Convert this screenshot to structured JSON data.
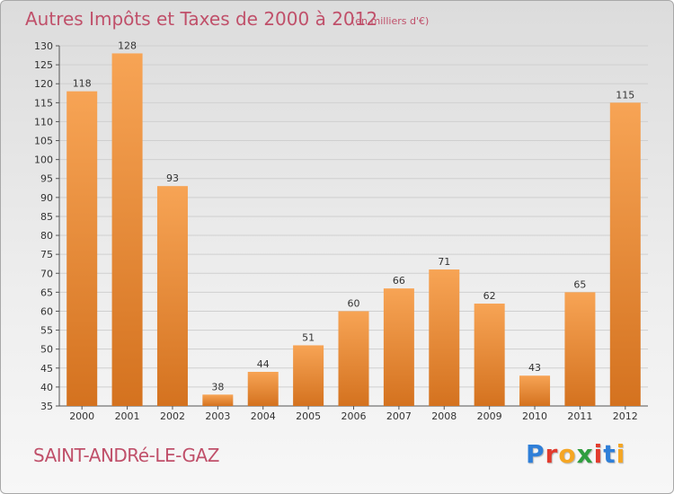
{
  "header": {
    "title": "Autres Impôts et Taxes de 2000 à 2012",
    "subtitle": "(en milliers d'€)"
  },
  "footer": {
    "place": "SAINT-ANDRé-LE-GAZ",
    "logo_text": "Proxiti",
    "logo_colors": [
      "#2f7fd8",
      "#e23b2e",
      "#f5a623",
      "#2f9e3f",
      "#e23b2e",
      "#2f7fd8",
      "#f5a623"
    ]
  },
  "colors": {
    "title": "#c0506a",
    "bar_top": "#f7a455",
    "bar_bottom": "#d4721f",
    "grid": "#cfcfcf"
  },
  "chart_data": {
    "type": "bar",
    "title": "Autres Impôts et Taxes de 2000 à 2012",
    "subtitle": "(en milliers d'€)",
    "categories": [
      "2000",
      "2001",
      "2002",
      "2003",
      "2004",
      "2005",
      "2006",
      "2007",
      "2008",
      "2009",
      "2010",
      "2011",
      "2012"
    ],
    "values": [
      118,
      128,
      93,
      38,
      44,
      51,
      60,
      66,
      71,
      62,
      43,
      65,
      115
    ],
    "ylim": [
      35,
      130
    ],
    "yticks": [
      35,
      40,
      45,
      50,
      55,
      60,
      65,
      70,
      75,
      80,
      85,
      90,
      95,
      100,
      105,
      110,
      115,
      120,
      125,
      130
    ],
    "grid": true,
    "data_labels": true,
    "xlabel": "",
    "ylabel": ""
  }
}
